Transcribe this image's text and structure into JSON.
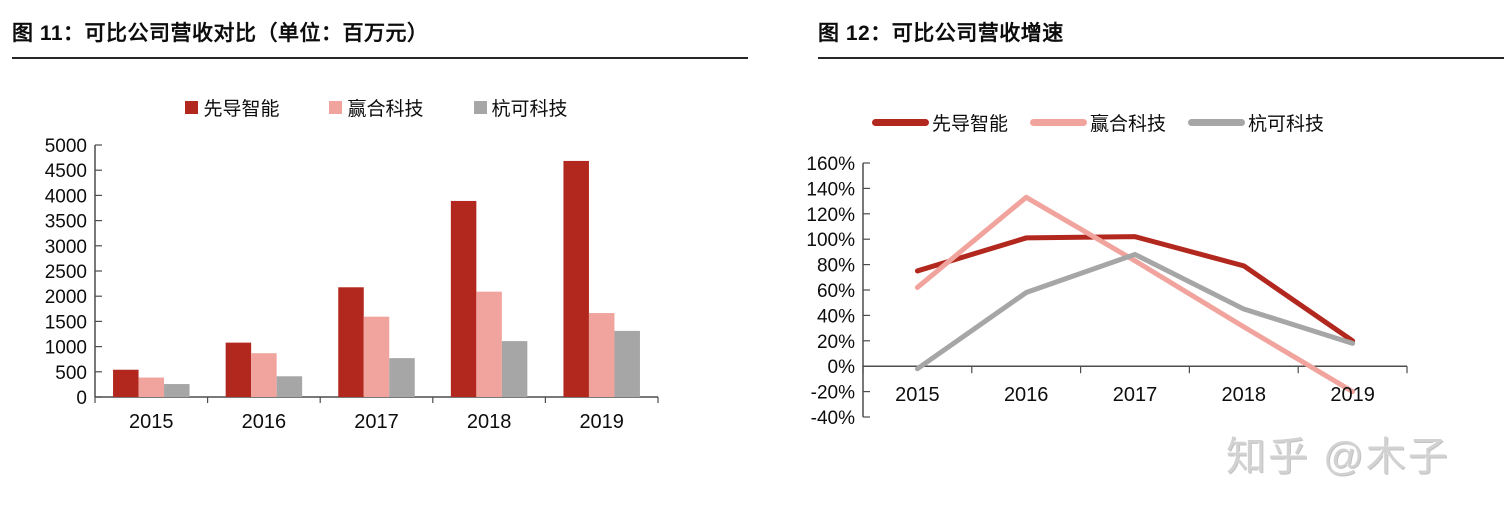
{
  "page": {
    "background": "#ffffff",
    "watermark": "知乎 @木子"
  },
  "colors": {
    "axis": "#4d4d4d",
    "title_rule": "#262626",
    "watermark_gray": "#d2d2d2"
  },
  "chart_data": [
    {
      "type": "bar",
      "title": "图 11：可比公司营收对比（单位：百万元）",
      "categories": [
        "2015",
        "2016",
        "2017",
        "2018",
        "2019"
      ],
      "series": [
        {
          "name": "先导智能",
          "color": "#b2281e",
          "values": [
            541,
            1079,
            2177,
            3890,
            4684
          ]
        },
        {
          "name": "赢合科技",
          "color": "#f1a49d",
          "values": [
            386,
            869,
            1594,
            2090,
            1666
          ]
        },
        {
          "name": "杭可科技",
          "color": "#a6a6a6",
          "values": [
            257,
            411,
            771,
            1109,
            1312
          ]
        }
      ],
      "ylim": [
        0,
        5000
      ],
      "ytick_step": 500,
      "ytick_suffix": "",
      "grid": false,
      "legend_position": "top"
    },
    {
      "type": "line",
      "title": "图 12：可比公司营收增速",
      "categories": [
        "2015",
        "2016",
        "2017",
        "2018",
        "2019"
      ],
      "series": [
        {
          "name": "先导智能",
          "color": "#b2281e",
          "values": [
            75,
            101,
            102,
            79,
            20
          ]
        },
        {
          "name": "赢合科技",
          "color": "#f1a49d",
          "values": [
            62,
            133,
            83,
            31,
            -20
          ]
        },
        {
          "name": "杭可科技",
          "color": "#a6a6a6",
          "values": [
            -2,
            58,
            88,
            45,
            18
          ]
        }
      ],
      "ylim": [
        -40,
        160
      ],
      "ytick_step": 20,
      "ytick_suffix": "%",
      "grid": false,
      "legend_position": "top"
    }
  ]
}
